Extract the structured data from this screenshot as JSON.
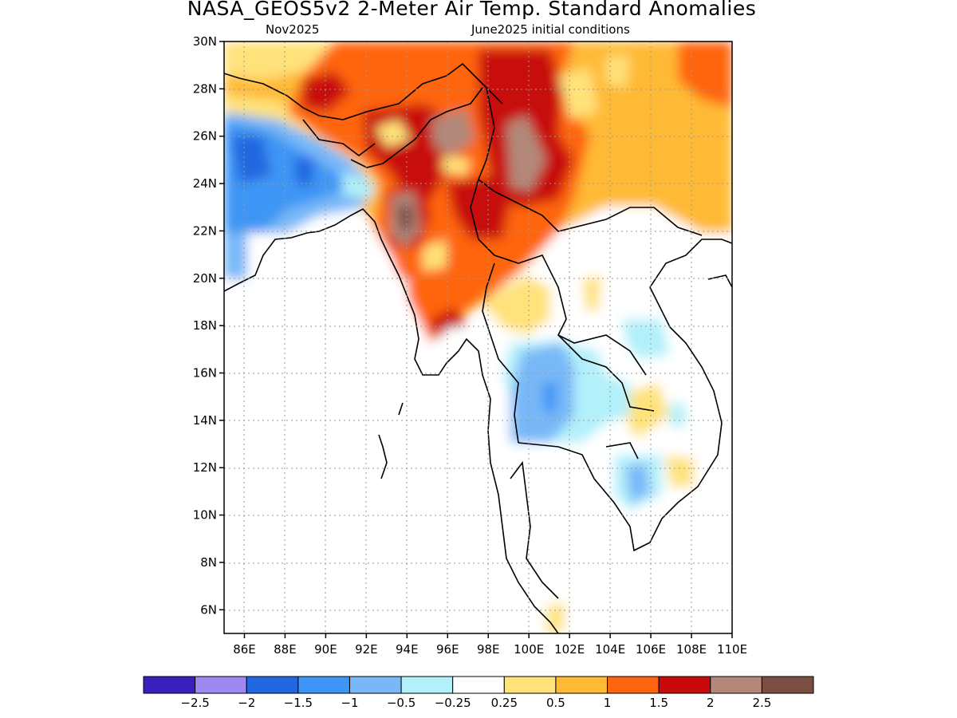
{
  "title": "NASA_GEOS5v2 2-Meter Air Temp. Standard Anomalies",
  "subtitle_left": "Nov2025",
  "subtitle_right": "June2025 initial conditions",
  "map": {
    "lon_range": [
      85,
      110
    ],
    "lat_range": [
      5,
      30
    ],
    "lon_ticks": [
      "86E",
      "88E",
      "90E",
      "92E",
      "94E",
      "96E",
      "98E",
      "100E",
      "102E",
      "104E",
      "106E",
      "108E",
      "110E"
    ],
    "lat_ticks": [
      "6N",
      "8N",
      "10N",
      "12N",
      "14N",
      "16N",
      "18N",
      "20N",
      "22N",
      "24N",
      "26N",
      "28N",
      "30N"
    ],
    "grid": "dotted"
  },
  "colorbar": {
    "colors": [
      "#3a1fbf",
      "#9e88f2",
      "#2067e0",
      "#3d96f5",
      "#78b8f8",
      "#b2f0fa",
      "#ffffff",
      "#ffe27a",
      "#ffba35",
      "#ff6510",
      "#c80a0a",
      "#b38878",
      "#7a4e43"
    ],
    "labels": [
      "−2.5",
      "−2",
      "−1.5",
      "−1",
      "−0.5",
      "−0.25",
      "0.25",
      "0.5",
      "1",
      "1.5",
      "2",
      "2.5"
    ]
  }
}
